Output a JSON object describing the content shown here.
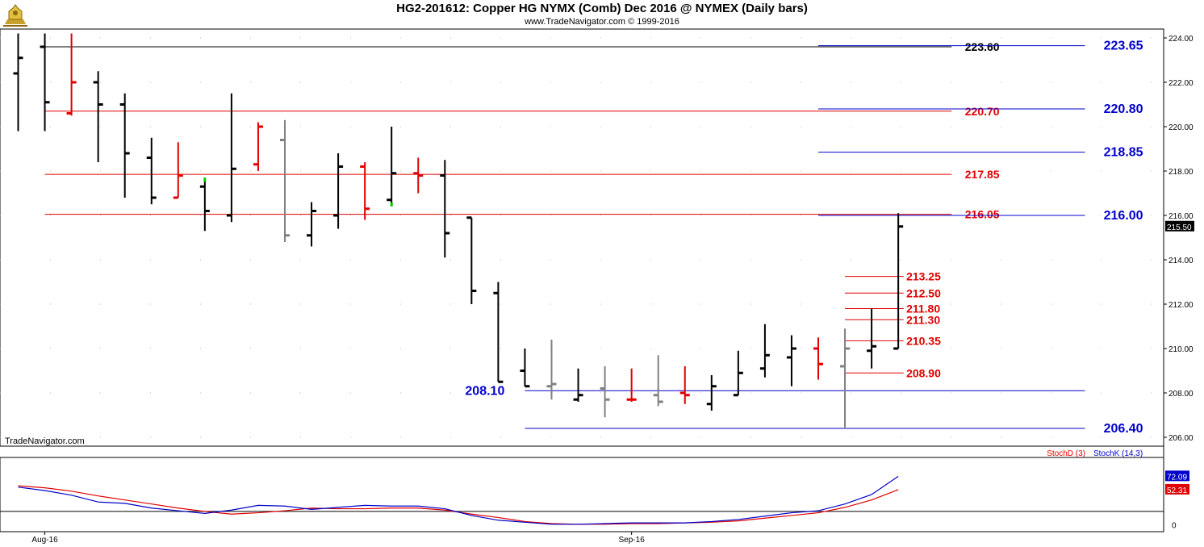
{
  "header": {
    "title": "HG2-201612:  Copper HG NYMX (Comb) Dec 2016 @ NYMEX  (Daily bars)",
    "subtitle": "www.TradeNavigator.com © 1999-2016"
  },
  "watermark": "TradeNavigator.com",
  "colors": {
    "up": "#000000",
    "down": "#e00000",
    "doji": "#808080",
    "highlight": "#00cc00",
    "blue_level": "#0000cc",
    "red_level": "#e00000",
    "black_level": "#000000",
    "stochD": "#cc0000",
    "stochK": "#0000cc"
  },
  "chart_data": [
    {
      "type": "ohlc",
      "title": "HG2-201612:  Copper HG NYMX (Comb) Dec 2016 @ NYMEX  (Daily bars)",
      "ylim": [
        205.6,
        224.4
      ],
      "y_ticks": [
        "206.00",
        "208.00",
        "210.00",
        "212.00",
        "214.00",
        "216.00",
        "218.00",
        "220.00",
        "222.00",
        "224.00"
      ],
      "x_labels": [
        {
          "label": "Aug-16",
          "index": 1
        },
        {
          "label": "Sep-16",
          "index": 23
        }
      ],
      "last_price_label": "215.50",
      "last_price": 215.5,
      "bars": [
        {
          "o": 222.4,
          "h": 224.2,
          "l": 219.8,
          "c": 223.1,
          "color": "black"
        },
        {
          "o": 223.6,
          "h": 224.2,
          "l": 219.8,
          "c": 221.1,
          "color": "black"
        },
        {
          "o": 220.6,
          "h": 224.2,
          "l": 220.5,
          "c": 222.0,
          "color": "red"
        },
        {
          "o": 222.0,
          "h": 222.5,
          "l": 218.4,
          "c": 221.0,
          "color": "black"
        },
        {
          "o": 221.0,
          "h": 221.5,
          "l": 216.8,
          "c": 218.8,
          "color": "black"
        },
        {
          "o": 218.6,
          "h": 219.5,
          "l": 216.5,
          "c": 216.8,
          "color": "black"
        },
        {
          "o": 216.8,
          "h": 219.3,
          "l": 216.8,
          "c": 217.8,
          "color": "red"
        },
        {
          "o": 217.3,
          "h": 217.7,
          "l": 215.3,
          "c": 216.2,
          "color": "black",
          "green_top": 217.7
        },
        {
          "o": 216.0,
          "h": 221.5,
          "l": 215.7,
          "c": 218.1,
          "color": "black"
        },
        {
          "o": 218.3,
          "h": 220.2,
          "l": 218.0,
          "c": 220.0,
          "color": "red"
        },
        {
          "o": 219.4,
          "h": 220.3,
          "l": 214.8,
          "c": 215.1,
          "color": "gray"
        },
        {
          "o": 215.1,
          "h": 216.6,
          "l": 214.6,
          "c": 216.2,
          "color": "black"
        },
        {
          "o": 216.0,
          "h": 218.8,
          "l": 215.4,
          "c": 218.2,
          "color": "black"
        },
        {
          "o": 218.2,
          "h": 218.4,
          "l": 215.8,
          "c": 216.3,
          "color": "red"
        },
        {
          "o": 216.7,
          "h": 220.0,
          "l": 216.4,
          "c": 217.9,
          "color": "black",
          "green_bottom": 216.4
        },
        {
          "o": 217.9,
          "h": 218.6,
          "l": 217.0,
          "c": 217.8,
          "color": "red"
        },
        {
          "o": 217.8,
          "h": 218.5,
          "l": 214.1,
          "c": 215.2,
          "color": "black"
        },
        {
          "o": 215.9,
          "h": 215.9,
          "l": 212.0,
          "c": 212.6,
          "color": "black"
        },
        {
          "o": 212.5,
          "h": 213.0,
          "l": 208.5,
          "c": 208.5,
          "color": "black"
        },
        {
          "o": 209.0,
          "h": 210.0,
          "l": 208.3,
          "c": 208.3,
          "color": "black"
        },
        {
          "o": 208.3,
          "h": 210.4,
          "l": 207.7,
          "c": 208.4,
          "color": "gray"
        },
        {
          "o": 207.7,
          "h": 209.1,
          "l": 207.6,
          "c": 207.9,
          "color": "black"
        },
        {
          "o": 208.2,
          "h": 209.2,
          "l": 206.9,
          "c": 207.7,
          "color": "gray"
        },
        {
          "o": 207.7,
          "h": 209.1,
          "l": 207.6,
          "c": 207.7,
          "color": "red"
        },
        {
          "o": 207.9,
          "h": 209.7,
          "l": 207.4,
          "c": 207.6,
          "color": "gray"
        },
        {
          "o": 208.0,
          "h": 209.2,
          "l": 207.5,
          "c": 207.9,
          "color": "red"
        },
        {
          "o": 207.5,
          "h": 208.8,
          "l": 207.2,
          "c": 208.3,
          "color": "black"
        },
        {
          "o": 207.9,
          "h": 209.9,
          "l": 207.9,
          "c": 208.9,
          "color": "black"
        },
        {
          "o": 209.1,
          "h": 211.1,
          "l": 208.7,
          "c": 209.7,
          "color": "black"
        },
        {
          "o": 209.6,
          "h": 210.6,
          "l": 208.3,
          "c": 210.0,
          "color": "black"
        },
        {
          "o": 210.0,
          "h": 210.5,
          "l": 208.6,
          "c": 209.3,
          "color": "red"
        },
        {
          "o": 209.2,
          "h": 210.9,
          "l": 206.4,
          "c": 210.0,
          "color": "gray"
        },
        {
          "o": 209.9,
          "h": 211.8,
          "l": 209.1,
          "c": 210.1,
          "color": "black"
        },
        {
          "o": 210.0,
          "h": 216.1,
          "l": 210.0,
          "c": 215.5,
          "color": "black"
        }
      ],
      "levels": [
        {
          "label": "223.60",
          "value": 223.6,
          "color": "black",
          "from": 1,
          "to": 35,
          "label_at": 35.5
        },
        {
          "label": "220.70",
          "value": 220.7,
          "color": "red",
          "from": 1,
          "to": 35,
          "label_at": 35.5
        },
        {
          "label": "217.85",
          "value": 217.85,
          "color": "red",
          "from": 1,
          "to": 35,
          "label_at": 35.5
        },
        {
          "label": "216.05",
          "value": 216.05,
          "color": "red",
          "from": 1,
          "to": 35,
          "label_at": 35.5
        },
        {
          "label": "223.65",
          "value": 223.65,
          "color": "blue",
          "from": 30,
          "to": 40,
          "label_at": 40.7,
          "big": true
        },
        {
          "label": "220.80",
          "value": 220.8,
          "color": "blue",
          "from": 30,
          "to": 40,
          "label_at": 40.7,
          "big": true
        },
        {
          "label": "218.85",
          "value": 218.85,
          "color": "blue",
          "from": 30,
          "to": 40,
          "label_at": 40.7,
          "big": true
        },
        {
          "label": "216.00",
          "value": 216.0,
          "color": "blue",
          "from": 30,
          "to": 40,
          "label_at": 40.7,
          "big": true
        },
        {
          "label": "213.25",
          "value": 213.25,
          "color": "red",
          "from": 31,
          "to": 33.2,
          "label_at": 33.3
        },
        {
          "label": "212.50",
          "value": 212.5,
          "color": "red",
          "from": 31,
          "to": 33.2,
          "label_at": 33.3
        },
        {
          "label": "211.80",
          "value": 211.8,
          "color": "red",
          "from": 31,
          "to": 33.2,
          "label_at": 33.3
        },
        {
          "label": "211.30",
          "value": 211.3,
          "color": "red",
          "from": 31,
          "to": 33.2,
          "label_at": 33.3
        },
        {
          "label": "210.35",
          "value": 210.35,
          "color": "red",
          "from": 31,
          "to": 33.2,
          "label_at": 33.3
        },
        {
          "label": "208.90",
          "value": 208.9,
          "color": "red",
          "from": 31,
          "to": 33.2,
          "label_at": 33.3
        },
        {
          "label": "208.10",
          "value": 208.1,
          "color": "blue",
          "from": 19,
          "to": 40,
          "label_at": 17.5,
          "big": true,
          "label_left": true
        },
        {
          "label": "206.40",
          "value": 206.4,
          "color": "blue",
          "from": 19,
          "to": 40,
          "label_at": 40.7,
          "big": true
        }
      ]
    },
    {
      "type": "line",
      "ylim": [
        -10,
        100
      ],
      "y_ticks": [
        "0"
      ],
      "reference_line": 20,
      "legend": [
        "StochD (3)",
        "StochK (14,3)"
      ],
      "series": [
        {
          "name": "StochD (3)",
          "color": "red",
          "last_label": "52.31",
          "values": [
            58,
            55,
            50,
            43,
            37,
            31,
            25,
            20,
            16,
            18,
            21,
            25,
            24,
            24,
            25,
            25,
            22,
            16,
            11,
            5,
            2,
            1,
            1,
            2,
            2,
            3,
            4,
            6,
            10,
            14,
            18,
            26,
            37,
            52.3
          ]
        },
        {
          "name": "StochK (14,3)",
          "color": "blue",
          "last_label": "72.09",
          "values": [
            56,
            51,
            44,
            34,
            32,
            25,
            21,
            17,
            22,
            29,
            28,
            23,
            26,
            29,
            28,
            28,
            24,
            14,
            7,
            4,
            1,
            1,
            2,
            3,
            3,
            3,
            5,
            8,
            13,
            18,
            21,
            31,
            45,
            72.1
          ]
        }
      ]
    }
  ]
}
